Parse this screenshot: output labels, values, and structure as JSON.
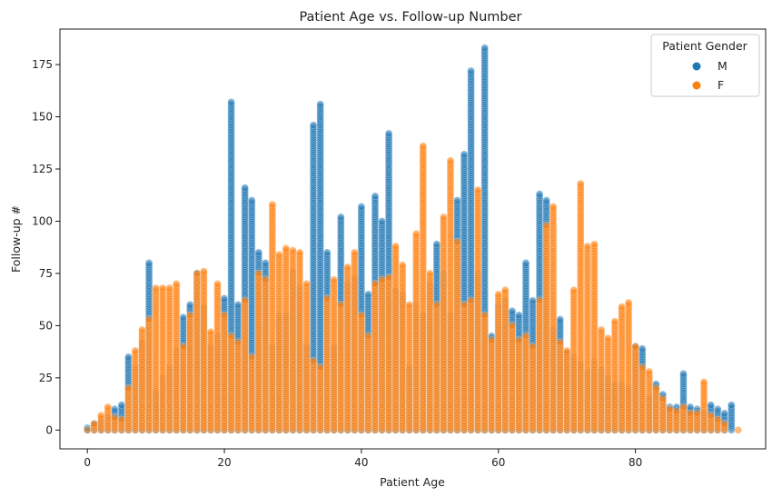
{
  "chart_data": {
    "type": "scatter",
    "title": "Patient Age vs. Follow-up Number",
    "xlabel": "Patient Age",
    "ylabel": "Follow-up #",
    "xlim": [
      -4,
      99
    ],
    "ylim": [
      -9,
      192
    ],
    "xticks": [
      0,
      20,
      40,
      60,
      80
    ],
    "yticks": [
      0,
      25,
      50,
      75,
      100,
      125,
      150,
      175
    ],
    "legend": {
      "title": "Patient Gender",
      "position": "top-right"
    },
    "marker_alpha": 0.55,
    "series": [
      {
        "name": "M",
        "color": "#1f77b4",
        "columns": [
          [
            0,
            1
          ],
          [
            1,
            3
          ],
          [
            2,
            4
          ],
          [
            3,
            6
          ],
          [
            4,
            10
          ],
          [
            5,
            12
          ],
          [
            6,
            35
          ],
          [
            7,
            30
          ],
          [
            8,
            42
          ],
          [
            9,
            80
          ],
          [
            10,
            18
          ],
          [
            11,
            25
          ],
          [
            12,
            30
          ],
          [
            13,
            38
          ],
          [
            14,
            54
          ],
          [
            15,
            60
          ],
          [
            16,
            75
          ],
          [
            17,
            59
          ],
          [
            18,
            40
          ],
          [
            19,
            45
          ],
          [
            20,
            63
          ],
          [
            21,
            157
          ],
          [
            22,
            60
          ],
          [
            23,
            116
          ],
          [
            24,
            110
          ],
          [
            25,
            85
          ],
          [
            26,
            80
          ],
          [
            27,
            40
          ],
          [
            28,
            55
          ],
          [
            29,
            55
          ],
          [
            30,
            76
          ],
          [
            31,
            68
          ],
          [
            32,
            40
          ],
          [
            33,
            146
          ],
          [
            34,
            156
          ],
          [
            35,
            85
          ],
          [
            36,
            40
          ],
          [
            37,
            102
          ],
          [
            38,
            70
          ],
          [
            39,
            73
          ],
          [
            40,
            107
          ],
          [
            41,
            65
          ],
          [
            42,
            112
          ],
          [
            43,
            100
          ],
          [
            44,
            142
          ],
          [
            45,
            67
          ],
          [
            46,
            65
          ],
          [
            47,
            30
          ],
          [
            48,
            60
          ],
          [
            49,
            55
          ],
          [
            50,
            70
          ],
          [
            51,
            89
          ],
          [
            52,
            75
          ],
          [
            53,
            55
          ],
          [
            54,
            110
          ],
          [
            55,
            132
          ],
          [
            56,
            172
          ],
          [
            57,
            75
          ],
          [
            58,
            183
          ],
          [
            59,
            45
          ],
          [
            60,
            60
          ],
          [
            61,
            62
          ],
          [
            62,
            57
          ],
          [
            63,
            55
          ],
          [
            64,
            80
          ],
          [
            65,
            62
          ],
          [
            66,
            113
          ],
          [
            67,
            110
          ],
          [
            68,
            48
          ],
          [
            69,
            53
          ],
          [
            70,
            37
          ],
          [
            71,
            35
          ],
          [
            72,
            32
          ],
          [
            73,
            28
          ],
          [
            74,
            33
          ],
          [
            75,
            29
          ],
          [
            76,
            25
          ],
          [
            77,
            22
          ],
          [
            78,
            22
          ],
          [
            79,
            20
          ],
          [
            80,
            40
          ],
          [
            81,
            39
          ],
          [
            82,
            15
          ],
          [
            83,
            22
          ],
          [
            84,
            17
          ],
          [
            85,
            11
          ],
          [
            86,
            11
          ],
          [
            87,
            27
          ],
          [
            88,
            11
          ],
          [
            89,
            10
          ],
          [
            90,
            8
          ],
          [
            91,
            12
          ],
          [
            92,
            10
          ],
          [
            93,
            8
          ],
          [
            94,
            12
          ]
        ]
      },
      {
        "name": "F",
        "color": "#ff7f0e",
        "columns": [
          [
            0,
            0
          ],
          [
            1,
            3
          ],
          [
            2,
            7
          ],
          [
            3,
            11
          ],
          [
            4,
            6
          ],
          [
            5,
            5
          ],
          [
            6,
            20
          ],
          [
            7,
            38
          ],
          [
            8,
            48
          ],
          [
            9,
            53
          ],
          [
            10,
            68
          ],
          [
            11,
            68
          ],
          [
            12,
            68
          ],
          [
            13,
            70
          ],
          [
            14,
            40
          ],
          [
            15,
            55
          ],
          [
            16,
            75
          ],
          [
            17,
            76
          ],
          [
            18,
            47
          ],
          [
            19,
            70
          ],
          [
            20,
            55
          ],
          [
            21,
            45
          ],
          [
            22,
            42
          ],
          [
            23,
            62
          ],
          [
            24,
            35
          ],
          [
            25,
            75
          ],
          [
            26,
            72
          ],
          [
            27,
            108
          ],
          [
            28,
            84
          ],
          [
            29,
            87
          ],
          [
            30,
            86
          ],
          [
            31,
            85
          ],
          [
            32,
            70
          ],
          [
            33,
            33
          ],
          [
            34,
            30
          ],
          [
            35,
            63
          ],
          [
            36,
            72
          ],
          [
            37,
            60
          ],
          [
            38,
            78
          ],
          [
            39,
            85
          ],
          [
            40,
            55
          ],
          [
            41,
            45
          ],
          [
            42,
            70
          ],
          [
            43,
            72
          ],
          [
            44,
            73
          ],
          [
            45,
            88
          ],
          [
            46,
            79
          ],
          [
            47,
            60
          ],
          [
            48,
            94
          ],
          [
            49,
            136
          ],
          [
            50,
            75
          ],
          [
            51,
            60
          ],
          [
            52,
            102
          ],
          [
            53,
            129
          ],
          [
            54,
            90
          ],
          [
            55,
            60
          ],
          [
            56,
            62
          ],
          [
            57,
            115
          ],
          [
            58,
            55
          ],
          [
            59,
            43
          ],
          [
            60,
            65
          ],
          [
            61,
            67
          ],
          [
            62,
            50
          ],
          [
            63,
            43
          ],
          [
            64,
            45
          ],
          [
            65,
            40
          ],
          [
            66,
            62
          ],
          [
            67,
            98
          ],
          [
            68,
            107
          ],
          [
            69,
            42
          ],
          [
            70,
            38
          ],
          [
            71,
            67
          ],
          [
            72,
            118
          ],
          [
            73,
            88
          ],
          [
            74,
            89
          ],
          [
            75,
            48
          ],
          [
            76,
            44
          ],
          [
            77,
            52
          ],
          [
            78,
            59
          ],
          [
            79,
            61
          ],
          [
            80,
            40
          ],
          [
            81,
            30
          ],
          [
            82,
            28
          ],
          [
            83,
            20
          ],
          [
            84,
            15
          ],
          [
            85,
            10
          ],
          [
            86,
            9
          ],
          [
            87,
            11
          ],
          [
            88,
            8
          ],
          [
            89,
            8
          ],
          [
            90,
            23
          ],
          [
            91,
            7
          ],
          [
            92,
            5
          ],
          [
            93,
            3
          ],
          [
            95,
            0
          ]
        ]
      }
    ]
  }
}
